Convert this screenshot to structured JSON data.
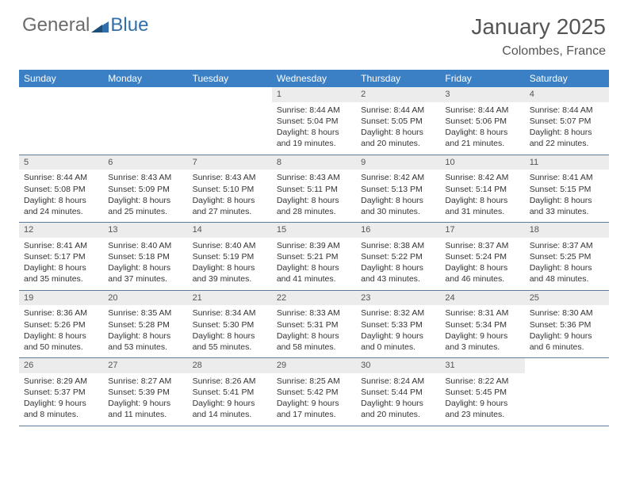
{
  "logo": {
    "text_general": "General",
    "text_blue": "Blue"
  },
  "title": "January 2025",
  "location": "Colombes, France",
  "header_bg": "#3b7fc4",
  "header_text_color": "#ffffff",
  "daynum_bg": "#ececec",
  "border_color": "#5c7a99",
  "font_family": "Arial, Helvetica, sans-serif",
  "cell_font_size": 10.5,
  "weekdays": [
    "Sunday",
    "Monday",
    "Tuesday",
    "Wednesday",
    "Thursday",
    "Friday",
    "Saturday"
  ],
  "weeks": [
    [
      {
        "empty": true
      },
      {
        "empty": true
      },
      {
        "empty": true
      },
      {
        "day": "1",
        "sunrise": "Sunrise: 8:44 AM",
        "sunset": "Sunset: 5:04 PM",
        "daylight": "Daylight: 8 hours and 19 minutes."
      },
      {
        "day": "2",
        "sunrise": "Sunrise: 8:44 AM",
        "sunset": "Sunset: 5:05 PM",
        "daylight": "Daylight: 8 hours and 20 minutes."
      },
      {
        "day": "3",
        "sunrise": "Sunrise: 8:44 AM",
        "sunset": "Sunset: 5:06 PM",
        "daylight": "Daylight: 8 hours and 21 minutes."
      },
      {
        "day": "4",
        "sunrise": "Sunrise: 8:44 AM",
        "sunset": "Sunset: 5:07 PM",
        "daylight": "Daylight: 8 hours and 22 minutes."
      }
    ],
    [
      {
        "day": "5",
        "sunrise": "Sunrise: 8:44 AM",
        "sunset": "Sunset: 5:08 PM",
        "daylight": "Daylight: 8 hours and 24 minutes."
      },
      {
        "day": "6",
        "sunrise": "Sunrise: 8:43 AM",
        "sunset": "Sunset: 5:09 PM",
        "daylight": "Daylight: 8 hours and 25 minutes."
      },
      {
        "day": "7",
        "sunrise": "Sunrise: 8:43 AM",
        "sunset": "Sunset: 5:10 PM",
        "daylight": "Daylight: 8 hours and 27 minutes."
      },
      {
        "day": "8",
        "sunrise": "Sunrise: 8:43 AM",
        "sunset": "Sunset: 5:11 PM",
        "daylight": "Daylight: 8 hours and 28 minutes."
      },
      {
        "day": "9",
        "sunrise": "Sunrise: 8:42 AM",
        "sunset": "Sunset: 5:13 PM",
        "daylight": "Daylight: 8 hours and 30 minutes."
      },
      {
        "day": "10",
        "sunrise": "Sunrise: 8:42 AM",
        "sunset": "Sunset: 5:14 PM",
        "daylight": "Daylight: 8 hours and 31 minutes."
      },
      {
        "day": "11",
        "sunrise": "Sunrise: 8:41 AM",
        "sunset": "Sunset: 5:15 PM",
        "daylight": "Daylight: 8 hours and 33 minutes."
      }
    ],
    [
      {
        "day": "12",
        "sunrise": "Sunrise: 8:41 AM",
        "sunset": "Sunset: 5:17 PM",
        "daylight": "Daylight: 8 hours and 35 minutes."
      },
      {
        "day": "13",
        "sunrise": "Sunrise: 8:40 AM",
        "sunset": "Sunset: 5:18 PM",
        "daylight": "Daylight: 8 hours and 37 minutes."
      },
      {
        "day": "14",
        "sunrise": "Sunrise: 8:40 AM",
        "sunset": "Sunset: 5:19 PM",
        "daylight": "Daylight: 8 hours and 39 minutes."
      },
      {
        "day": "15",
        "sunrise": "Sunrise: 8:39 AM",
        "sunset": "Sunset: 5:21 PM",
        "daylight": "Daylight: 8 hours and 41 minutes."
      },
      {
        "day": "16",
        "sunrise": "Sunrise: 8:38 AM",
        "sunset": "Sunset: 5:22 PM",
        "daylight": "Daylight: 8 hours and 43 minutes."
      },
      {
        "day": "17",
        "sunrise": "Sunrise: 8:37 AM",
        "sunset": "Sunset: 5:24 PM",
        "daylight": "Daylight: 8 hours and 46 minutes."
      },
      {
        "day": "18",
        "sunrise": "Sunrise: 8:37 AM",
        "sunset": "Sunset: 5:25 PM",
        "daylight": "Daylight: 8 hours and 48 minutes."
      }
    ],
    [
      {
        "day": "19",
        "sunrise": "Sunrise: 8:36 AM",
        "sunset": "Sunset: 5:26 PM",
        "daylight": "Daylight: 8 hours and 50 minutes."
      },
      {
        "day": "20",
        "sunrise": "Sunrise: 8:35 AM",
        "sunset": "Sunset: 5:28 PM",
        "daylight": "Daylight: 8 hours and 53 minutes."
      },
      {
        "day": "21",
        "sunrise": "Sunrise: 8:34 AM",
        "sunset": "Sunset: 5:30 PM",
        "daylight": "Daylight: 8 hours and 55 minutes."
      },
      {
        "day": "22",
        "sunrise": "Sunrise: 8:33 AM",
        "sunset": "Sunset: 5:31 PM",
        "daylight": "Daylight: 8 hours and 58 minutes."
      },
      {
        "day": "23",
        "sunrise": "Sunrise: 8:32 AM",
        "sunset": "Sunset: 5:33 PM",
        "daylight": "Daylight: 9 hours and 0 minutes."
      },
      {
        "day": "24",
        "sunrise": "Sunrise: 8:31 AM",
        "sunset": "Sunset: 5:34 PM",
        "daylight": "Daylight: 9 hours and 3 minutes."
      },
      {
        "day": "25",
        "sunrise": "Sunrise: 8:30 AM",
        "sunset": "Sunset: 5:36 PM",
        "daylight": "Daylight: 9 hours and 6 minutes."
      }
    ],
    [
      {
        "day": "26",
        "sunrise": "Sunrise: 8:29 AM",
        "sunset": "Sunset: 5:37 PM",
        "daylight": "Daylight: 9 hours and 8 minutes."
      },
      {
        "day": "27",
        "sunrise": "Sunrise: 8:27 AM",
        "sunset": "Sunset: 5:39 PM",
        "daylight": "Daylight: 9 hours and 11 minutes."
      },
      {
        "day": "28",
        "sunrise": "Sunrise: 8:26 AM",
        "sunset": "Sunset: 5:41 PM",
        "daylight": "Daylight: 9 hours and 14 minutes."
      },
      {
        "day": "29",
        "sunrise": "Sunrise: 8:25 AM",
        "sunset": "Sunset: 5:42 PM",
        "daylight": "Daylight: 9 hours and 17 minutes."
      },
      {
        "day": "30",
        "sunrise": "Sunrise: 8:24 AM",
        "sunset": "Sunset: 5:44 PM",
        "daylight": "Daylight: 9 hours and 20 minutes."
      },
      {
        "day": "31",
        "sunrise": "Sunrise: 8:22 AM",
        "sunset": "Sunset: 5:45 PM",
        "daylight": "Daylight: 9 hours and 23 minutes."
      },
      {
        "empty": true
      }
    ]
  ]
}
